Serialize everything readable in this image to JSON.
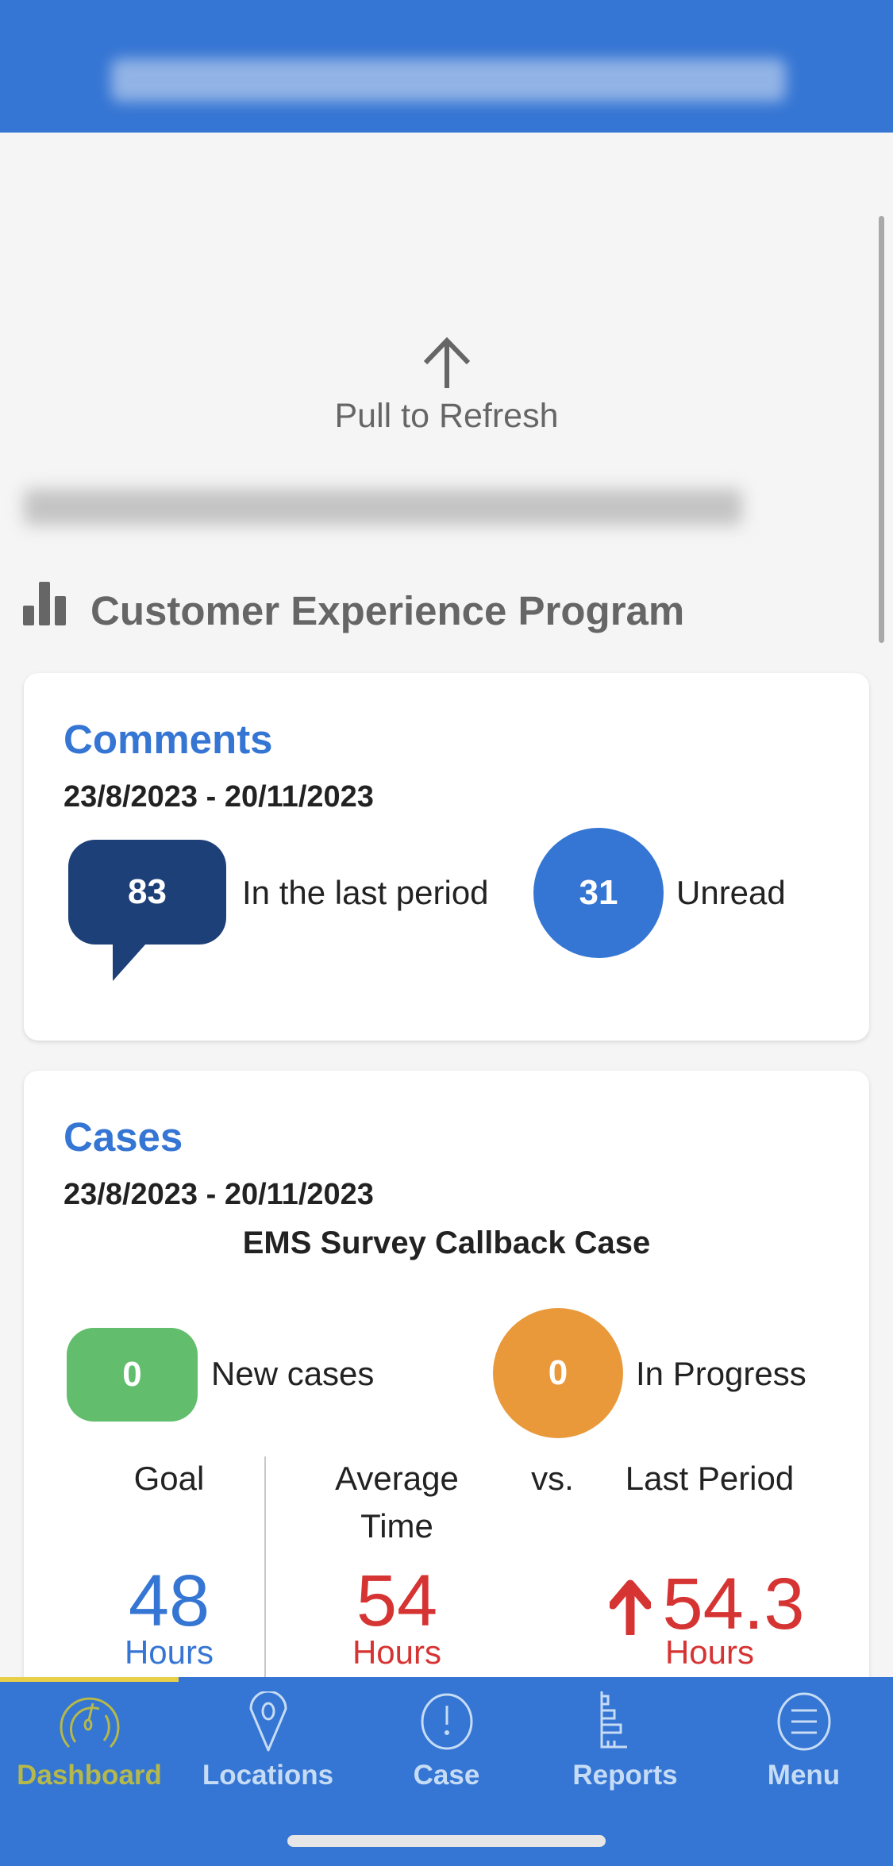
{
  "colors": {
    "brand": "#3575d3",
    "dark_blue": "#1e4079",
    "red": "#d63333",
    "green": "#62bd6c",
    "orange": "#e9983a",
    "active_tab": "#b5b84a",
    "indicator": "#e8cf4a"
  },
  "refresh": {
    "icon": "arrow-up-icon",
    "label": "Pull to Refresh"
  },
  "section": {
    "icon": "bar-chart-icon",
    "title": "Customer Experience Program"
  },
  "comments": {
    "title": "Comments",
    "date_range": "23/8/2023 - 20/11/2023",
    "count": "83",
    "count_label": "In the last period",
    "unread": "31",
    "unread_label": "Unread"
  },
  "cases": {
    "title": "Cases",
    "date_range": "23/8/2023 - 20/11/2023",
    "case_type": "EMS Survey Callback Case",
    "new_count": "0",
    "new_label": "New cases",
    "progress_count": "0",
    "progress_label": "In Progress",
    "goal_label": "Goal",
    "avg_label_1": "Average",
    "avg_label_2": "Time",
    "vs_label": "vs.",
    "last_label": "Last Period",
    "goal_value": "48",
    "avg_value": "54",
    "last_value": "54.3",
    "last_trend": "up",
    "unit": "Hours"
  },
  "tabs": [
    {
      "label": "Dashboard",
      "icon": "speedometer-icon",
      "active": true
    },
    {
      "label": "Locations",
      "icon": "map-pin-icon",
      "active": false
    },
    {
      "label": "Case",
      "icon": "alert-circle-icon",
      "active": false
    },
    {
      "label": "Reports",
      "icon": "report-chart-icon",
      "active": false
    },
    {
      "label": "Menu",
      "icon": "menu-icon",
      "active": false
    }
  ]
}
